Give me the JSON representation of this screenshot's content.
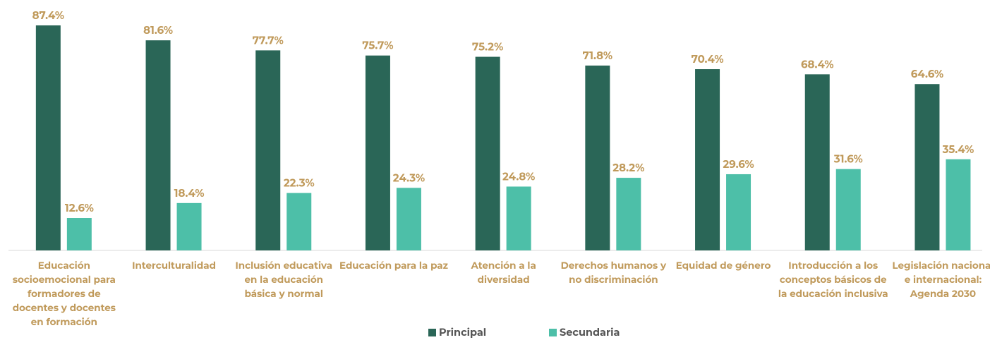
{
  "chart_data": {
    "type": "bar",
    "categories": [
      "Educación socioemocional para formadores de docentes y docentes en formación",
      "Interculturalidad",
      "Inclusión educativa en la educación básica y normal",
      "Educación para la paz",
      "Atención a la diversidad",
      "Derechos humanos y no discriminación",
      "Equidad de género",
      "Introducción a los conceptos básicos de la educación inclusiva",
      "Legislación nacional e internacional: Agenda 2030"
    ],
    "series": [
      {
        "name": "Principal",
        "color": "#2a6657",
        "values": [
          87.4,
          81.6,
          77.7,
          75.7,
          75.2,
          71.8,
          70.4,
          68.4,
          64.6
        ],
        "value_labels": [
          "87.4%",
          "81.6%",
          "77.7%",
          "75.7%",
          "75.2%",
          "71.8%",
          "70.4%",
          "68.4%",
          "64.6%"
        ]
      },
      {
        "name": "Secundaria",
        "color": "#4dbfa8",
        "values": [
          12.6,
          18.4,
          22.3,
          24.3,
          24.8,
          28.2,
          29.6,
          31.6,
          35.4
        ],
        "value_labels": [
          "12.6%",
          "18.4%",
          "22.3%",
          "24.3%",
          "24.8%",
          "28.2%",
          "29.6%",
          "31.6%",
          "35.4%"
        ]
      }
    ],
    "ylim": [
      0,
      90
    ],
    "legend": "bottom"
  }
}
